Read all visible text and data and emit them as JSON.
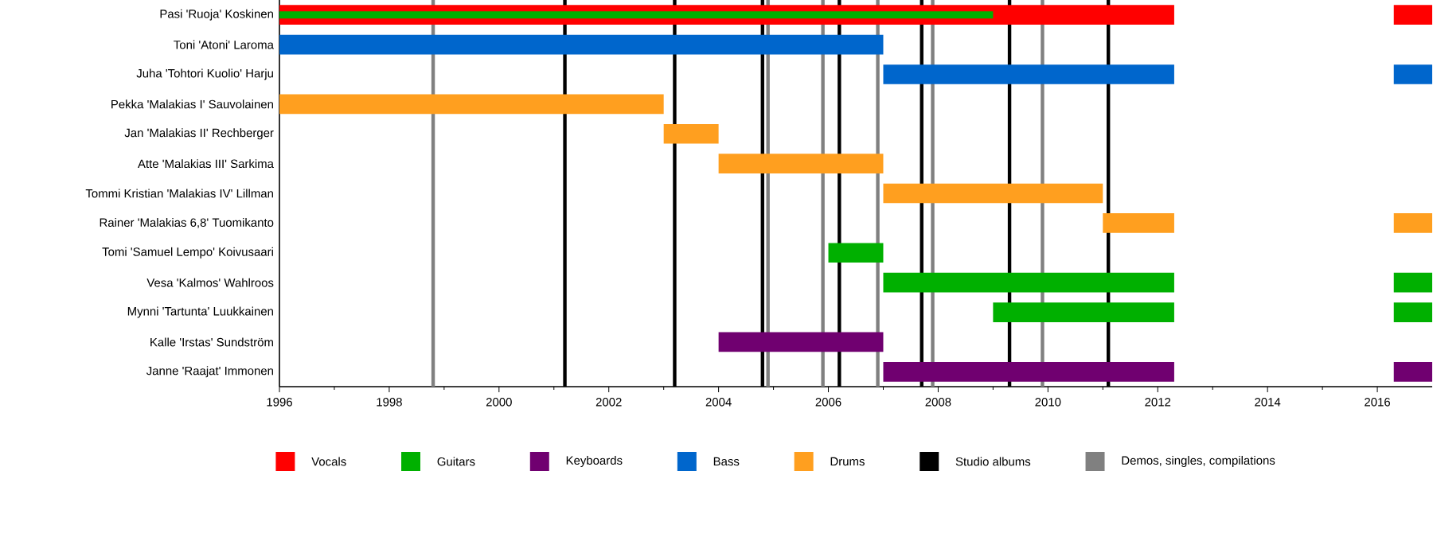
{
  "chart_data": {
    "type": "bar",
    "orientation": "horizontal",
    "categories": [
      "Pasi 'Ruoja' Koskinen",
      "Toni 'Atoni' Laroma",
      "Juha 'Tohtori Kuolio' Harju",
      "Pekka 'Malakias I' Sauvolainen",
      "Jan 'Malakias II' Rechberger",
      "Atte 'Malakias III' Sarkima",
      "Tommi Kristian 'Malakias IV' Lillman",
      "Rainer 'Malakias 6,8' Tuomikanto",
      "Tomi 'Samuel Lempo' Koivusaari",
      "Vesa 'Kalmos' Wahlroos",
      "Mynni 'Tartunta' Luukkainen",
      "Kalle 'Irstas' Sundström",
      "Janne 'Raajat' Immonen"
    ],
    "series": [
      {
        "name": "Vocals",
        "color": "#ff0000",
        "base": [
          1996,
          null,
          null,
          null,
          null,
          null,
          null,
          null,
          null,
          null,
          null,
          null,
          null
        ],
        "values": [
          16.3,
          null,
          null,
          null,
          null,
          null,
          null,
          null,
          null,
          null,
          null,
          null,
          null
        ]
      },
      {
        "name": "Guitars",
        "color": "#00b000",
        "base": [
          1996,
          null,
          null,
          null,
          null,
          null,
          null,
          null,
          2006,
          2007,
          2009,
          null,
          null
        ],
        "values": [
          13.0,
          null,
          null,
          null,
          null,
          null,
          null,
          null,
          1.0,
          5.3,
          3.3,
          null,
          null
        ]
      },
      {
        "name": "Keyboards",
        "color": "#700070",
        "base": [
          null,
          null,
          null,
          null,
          null,
          null,
          null,
          null,
          null,
          null,
          null,
          2004,
          2007
        ],
        "values": [
          null,
          null,
          null,
          null,
          null,
          null,
          null,
          null,
          null,
          null,
          null,
          3.0,
          5.3
        ]
      },
      {
        "name": "Bass",
        "color": "#0066cc",
        "base": [
          null,
          1996,
          2007,
          null,
          null,
          null,
          null,
          null,
          null,
          null,
          null,
          null,
          null
        ],
        "values": [
          null,
          11.0,
          5.3,
          null,
          null,
          null,
          null,
          null,
          null,
          null,
          null,
          null,
          null
        ]
      },
      {
        "name": "Drums",
        "color": "#ff9f1f",
        "base": [
          null,
          null,
          null,
          1996,
          2003,
          2004,
          2007,
          2011,
          null,
          null,
          null,
          null,
          null
        ],
        "values": [
          null,
          null,
          null,
          7.0,
          1.0,
          3.0,
          4.0,
          1.3,
          null,
          null,
          null,
          null,
          null
        ]
      },
      {
        "color": "#ff0000",
        "base": [
          2016.3,
          null,
          null,
          null,
          null,
          null,
          null,
          null,
          null,
          null,
          null,
          null,
          null
        ],
        "values": [
          0.7,
          null,
          null,
          null,
          null,
          null,
          null,
          null,
          null,
          null,
          null,
          null,
          null
        ]
      },
      {
        "color": "#00b000",
        "base": [
          null,
          null,
          null,
          null,
          null,
          null,
          null,
          null,
          null,
          2016.3,
          2016.3,
          null,
          null
        ],
        "values": [
          null,
          null,
          null,
          null,
          null,
          null,
          null,
          null,
          null,
          0.7,
          0.7,
          null,
          null
        ]
      },
      {
        "color": "#700070",
        "base": [
          null,
          null,
          null,
          null,
          null,
          null,
          null,
          null,
          null,
          null,
          null,
          null,
          2016.3
        ],
        "values": [
          null,
          null,
          null,
          null,
          null,
          null,
          null,
          null,
          null,
          null,
          null,
          null,
          0.7
        ]
      },
      {
        "color": "#0066cc",
        "base": [
          null,
          null,
          2016.3,
          null,
          null,
          null,
          null,
          null,
          null,
          null,
          null,
          null,
          null
        ],
        "values": [
          null,
          null,
          0.7,
          null,
          null,
          null,
          null,
          null,
          null,
          null,
          null,
          null,
          null
        ]
      },
      {
        "color": "#ff9f1f",
        "base": [
          null,
          null,
          null,
          null,
          null,
          null,
          null,
          2016.3,
          null,
          null,
          null,
          null,
          null
        ],
        "values": [
          null,
          null,
          null,
          null,
          null,
          null,
          null,
          0.7,
          null,
          null,
          null,
          null,
          null
        ]
      }
    ],
    "ref_lines": [
      {
        "axis": "x",
        "value": 2001.2,
        "color": "#000000",
        "label": "Studio albums"
      },
      {
        "axis": "x",
        "value": 2003.2,
        "color": "#000000"
      },
      {
        "axis": "x",
        "value": 2004.8,
        "color": "#000000"
      },
      {
        "axis": "x",
        "value": 2006.2,
        "color": "#000000"
      },
      {
        "axis": "x",
        "value": 2007.7,
        "color": "#000000"
      },
      {
        "axis": "x",
        "value": 2009.3,
        "color": "#000000"
      },
      {
        "axis": "x",
        "value": 2011.1,
        "color": "#000000"
      },
      {
        "axis": "x",
        "value": 1998.8,
        "color": "#808080",
        "label": "Demos, singles, compilations"
      },
      {
        "axis": "x",
        "value": 2004.9,
        "color": "#808080"
      },
      {
        "axis": "x",
        "value": 2005.9,
        "color": "#808080"
      },
      {
        "axis": "x",
        "value": 2006.9,
        "color": "#808080"
      },
      {
        "axis": "x",
        "value": 2007.9,
        "color": "#808080"
      },
      {
        "axis": "x",
        "value": 2009.9,
        "color": "#808080"
      }
    ],
    "xlim": [
      1996,
      2017
    ],
    "xticks": [
      1996,
      1998,
      2000,
      2002,
      2004,
      2006,
      2008,
      2010,
      2012,
      2014,
      2016
    ],
    "legend": "bottom",
    "grid": false
  }
}
